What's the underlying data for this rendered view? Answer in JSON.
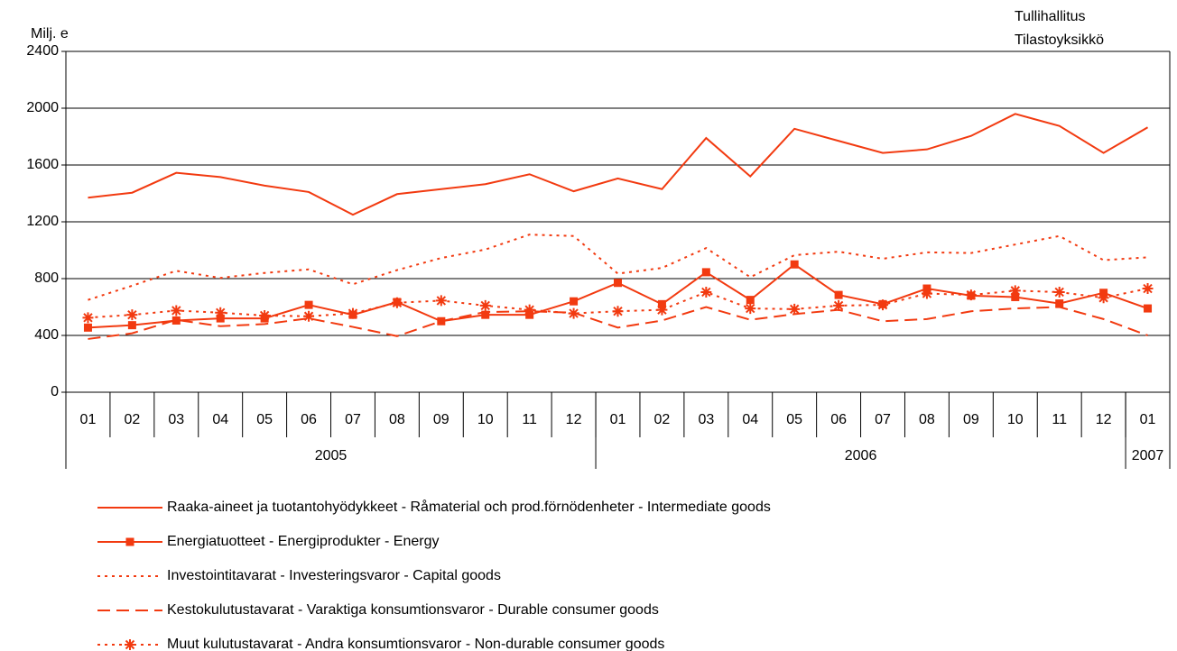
{
  "chart_data": {
    "type": "line",
    "ylabel": "Milj. e",
    "source": [
      "Tullihallitus",
      "Tilastoyksikkö"
    ],
    "categories": [
      "01",
      "02",
      "03",
      "04",
      "05",
      "06",
      "07",
      "08",
      "09",
      "10",
      "11",
      "12",
      "01",
      "02",
      "03",
      "04",
      "05",
      "06",
      "07",
      "08",
      "09",
      "10",
      "11",
      "12",
      "01"
    ],
    "year_groups": [
      {
        "label": "2005",
        "span": 12
      },
      {
        "label": "2006",
        "span": 12
      },
      {
        "label": "2007",
        "span": 1
      }
    ],
    "ylim": [
      0,
      2400
    ],
    "yticks": [
      0,
      400,
      800,
      1200,
      1600,
      2000,
      2400
    ],
    "grid": true,
    "series": [
      {
        "name": "Raaka-aineet ja tuotantohyödykkeet - Råmaterial och prod.förnödenheter - Intermediate goods",
        "color": "#f23a10",
        "style": "solid",
        "marker": "none",
        "values": [
          1370,
          1405,
          1545,
          1515,
          1455,
          1410,
          1250,
          1395,
          1430,
          1465,
          1535,
          1415,
          1505,
          1430,
          1790,
          1520,
          1855,
          1770,
          1685,
          1710,
          1805,
          1960,
          1875,
          1685,
          1865
        ]
      },
      {
        "name": "Energiatuotteet - Energiprodukter - Energy",
        "color": "#f23a10",
        "style": "solid",
        "marker": "square",
        "values": [
          455,
          472,
          505,
          520,
          520,
          615,
          545,
          635,
          500,
          545,
          545,
          640,
          770,
          620,
          845,
          650,
          900,
          685,
          620,
          730,
          680,
          670,
          625,
          700,
          590
        ]
      },
      {
        "name": "Investointitavarat - Investeringsvaror - Capital goods",
        "color": "#f23a10",
        "style": "dotted",
        "marker": "none",
        "values": [
          650,
          750,
          855,
          805,
          840,
          865,
          760,
          860,
          945,
          1005,
          1110,
          1100,
          835,
          875,
          1015,
          810,
          965,
          990,
          940,
          985,
          980,
          1040,
          1100,
          930,
          950
        ]
      },
      {
        "name": "Kestokulutustavarat - Varaktiga konsumtionsvaror - Durable consumer goods",
        "color": "#f23a10",
        "style": "dashed",
        "marker": "none",
        "values": [
          375,
          415,
          510,
          465,
          480,
          520,
          460,
          395,
          500,
          565,
          570,
          560,
          455,
          505,
          600,
          510,
          550,
          580,
          500,
          515,
          570,
          590,
          600,
          515,
          400
        ]
      },
      {
        "name": "Muut kulutustavarat - Andra konsumtionsvaror - Non-durable consumer goods",
        "color": "#f23a10",
        "style": "dotted",
        "marker": "star",
        "values": [
          525,
          545,
          575,
          560,
          540,
          535,
          555,
          630,
          645,
          610,
          580,
          555,
          570,
          580,
          705,
          590,
          585,
          610,
          615,
          695,
          685,
          715,
          705,
          665,
          730
        ]
      }
    ]
  }
}
